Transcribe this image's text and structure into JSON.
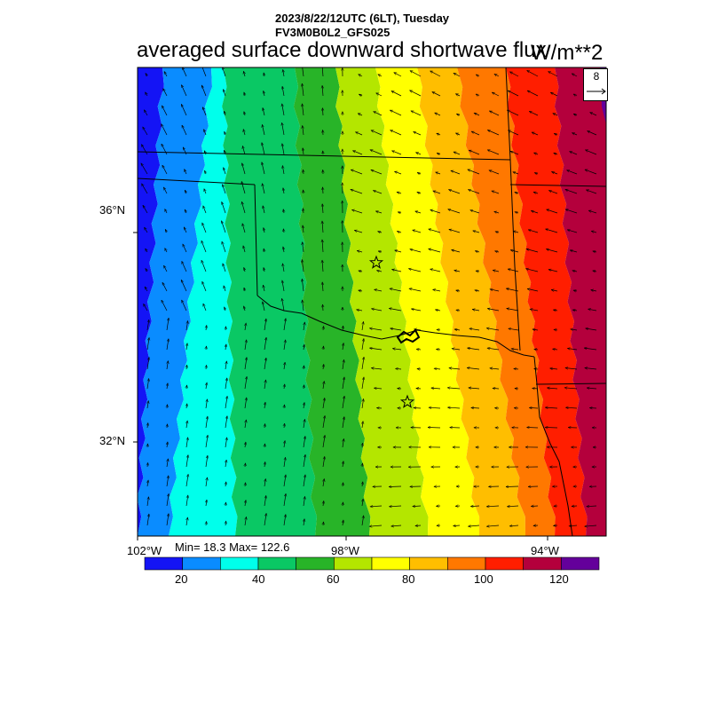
{
  "header": {
    "time_line": "2023/8/22/12UTC (6LT), Tuesday",
    "model_line": "FV3M0B0L2_GFS025",
    "title": "averaged surface downward shortwave flux",
    "units": "W/m**2"
  },
  "vector_reference": {
    "value": "8"
  },
  "axes": {
    "lat_labels": [
      "36°N",
      "32°N"
    ],
    "lon_labels": [
      "102°W",
      "98°W",
      "94°W"
    ]
  },
  "stats": {
    "text": "Min= 18.3 Max= 122.6",
    "min": 18.3,
    "max": 122.6
  },
  "colorbar": {
    "labels": [
      "20",
      "40",
      "60",
      "80",
      "100",
      "120"
    ],
    "levels": [
      10,
      20,
      30,
      40,
      50,
      60,
      70,
      80,
      90,
      100,
      110,
      120,
      130
    ],
    "colors": [
      "#1414f5",
      "#0a8cff",
      "#00ffeb",
      "#0ac864",
      "#28b428",
      "#b4e600",
      "#ffff00",
      "#ffbe00",
      "#ff7800",
      "#ff1e00",
      "#b4003c",
      "#64009b"
    ]
  },
  "map": {
    "markers": [
      "star",
      "star"
    ]
  }
}
